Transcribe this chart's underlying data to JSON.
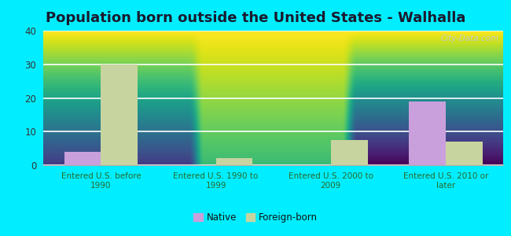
{
  "title": "Population born outside the United States - Walhalla",
  "categories": [
    "Entered U.S. before\n1990",
    "Entered U.S. 1990 to\n1999",
    "Entered U.S. 2000 to\n2009",
    "Entered U.S. 2010 or\nlater"
  ],
  "native_values": [
    4,
    0,
    0,
    19
  ],
  "foreign_values": [
    30,
    2,
    7.5,
    7
  ],
  "native_color": "#c9a0dc",
  "foreign_color": "#c8d4a0",
  "ylim": [
    0,
    40
  ],
  "yticks": [
    0,
    10,
    20,
    30,
    40
  ],
  "background_outer": "#00eeff",
  "background_inner_top": "#ffffff",
  "background_inner_bottom": "#d8f0d0",
  "title_fontsize": 13,
  "title_color": "#1a1a2e",
  "axis_tick_color": "#2a6a2a",
  "watermark_text": "City-Data.com",
  "legend_native": "Native",
  "legend_foreign": "Foreign-born",
  "bar_width": 0.32
}
